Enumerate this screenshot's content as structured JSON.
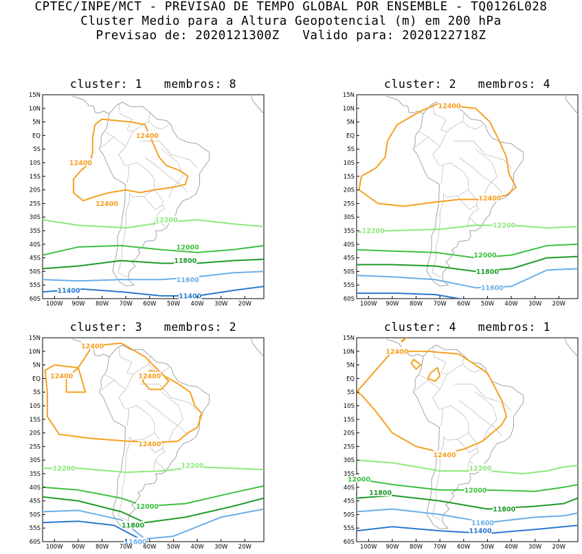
{
  "header": {
    "line1": "CPTEC/INPE/MCT - PREVISAO DE TEMPO GLOBAL POR ENSEMBLE - TQ0126L028",
    "line2": "Cluster Medio para a Altura Geopotencial (m) em 200 hPa",
    "line3": "Previsao de: 2020121300Z   Valido para: 2020122718Z"
  },
  "axes": {
    "lat_labels": [
      "15N",
      "10N",
      "5N",
      "EQ",
      "5S",
      "10S",
      "15S",
      "20S",
      "25S",
      "30S",
      "35S",
      "40S",
      "45S",
      "50S",
      "55S",
      "60S"
    ],
    "lon_labels": [
      "100W",
      "90W",
      "80W",
      "70W",
      "60W",
      "50W",
      "40W",
      "30W",
      "20W"
    ]
  },
  "contour_colors": {
    "12400": "#f5a020",
    "12200": "#8ce87a",
    "12000": "#3cc040",
    "11800": "#1e9a28",
    "11600": "#6aaee8",
    "11400": "#2a78d0"
  },
  "panels": [
    {
      "title": "cluster: 1   membros: 8",
      "labels": [
        {
          "text": "12400",
          "lon": -61,
          "lat": 0,
          "level": "12400"
        },
        {
          "text": "12400",
          "lon": -89,
          "lat": -10,
          "level": "12400"
        },
        {
          "text": "12400",
          "lon": -78,
          "lat": -25,
          "level": "12400"
        },
        {
          "text": "12200",
          "lon": -53,
          "lat": -31,
          "level": "12200"
        },
        {
          "text": "12000",
          "lon": -44,
          "lat": -41,
          "level": "12000"
        },
        {
          "text": "11800",
          "lon": -45,
          "lat": -46,
          "level": "11800"
        },
        {
          "text": "11600",
          "lon": -44,
          "lat": -53,
          "level": "11600"
        },
        {
          "text": "11400",
          "lon": -94,
          "lat": -57,
          "level": "11400"
        },
        {
          "text": "11400",
          "lon": -43,
          "lat": -59,
          "level": "11400"
        }
      ]
    },
    {
      "title": "cluster: 2   membros: 4",
      "labels": [
        {
          "text": "12400",
          "lon": -66,
          "lat": 11,
          "level": "12400"
        },
        {
          "text": "12400",
          "lon": -49,
          "lat": -23,
          "level": "12400"
        },
        {
          "text": "12200",
          "lon": -98,
          "lat": -35,
          "level": "12200"
        },
        {
          "text": "12200",
          "lon": -43,
          "lat": -33,
          "level": "12200"
        },
        {
          "text": "12000",
          "lon": -51,
          "lat": -44,
          "level": "12000"
        },
        {
          "text": "11800",
          "lon": -50,
          "lat": -50,
          "level": "11800"
        },
        {
          "text": "11600",
          "lon": -48,
          "lat": -56,
          "level": "11600"
        }
      ]
    },
    {
      "title": "cluster: 3   membros: 2",
      "labels": [
        {
          "text": "12400",
          "lon": -84,
          "lat": 12,
          "level": "12400"
        },
        {
          "text": "12400",
          "lon": -97,
          "lat": 1,
          "level": "12400"
        },
        {
          "text": "12400",
          "lon": -60,
          "lat": 1,
          "level": "12400"
        },
        {
          "text": "12400",
          "lon": -60,
          "lat": -24,
          "level": "12400"
        },
        {
          "text": "12200",
          "lon": -96,
          "lat": -33,
          "level": "12200"
        },
        {
          "text": "12200",
          "lon": -42,
          "lat": -32,
          "level": "12200"
        },
        {
          "text": "12000",
          "lon": -61,
          "lat": -47,
          "level": "12000"
        },
        {
          "text": "11800",
          "lon": -67,
          "lat": -54,
          "level": "11800"
        },
        {
          "text": "11600",
          "lon": -66,
          "lat": -60,
          "level": "11600"
        }
      ]
    },
    {
      "title": "cluster: 4   membros: 1",
      "labels": [
        {
          "text": "12400",
          "lon": -88,
          "lat": 10,
          "level": "12400"
        },
        {
          "text": "12400",
          "lon": -68,
          "lat": -28,
          "level": "12400"
        },
        {
          "text": "12200",
          "lon": -53,
          "lat": -33,
          "level": "12200"
        },
        {
          "text": "12000",
          "lon": -104,
          "lat": -37,
          "level": "12000"
        },
        {
          "text": "12000",
          "lon": -55,
          "lat": -41,
          "level": "12000"
        },
        {
          "text": "11800",
          "lon": -95,
          "lat": -42,
          "level": "11800"
        },
        {
          "text": "11800",
          "lon": -43,
          "lat": -48,
          "level": "11800"
        },
        {
          "text": "11600",
          "lon": -52,
          "lat": -53,
          "level": "11600"
        },
        {
          "text": "11400",
          "lon": -53,
          "lat": -56,
          "level": "11400"
        }
      ]
    }
  ]
}
